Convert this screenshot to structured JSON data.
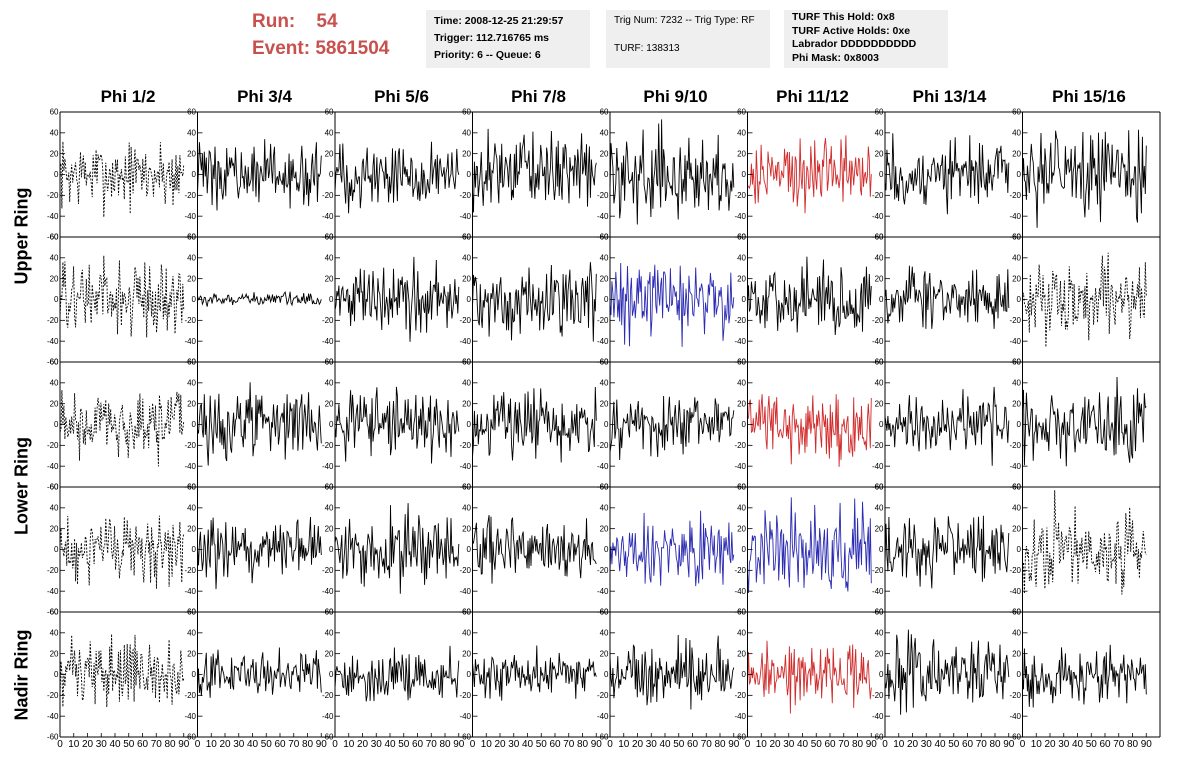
{
  "header": {
    "run_label": "Run:",
    "run_value": "54",
    "event_label": "Event:",
    "event_value": "5861504",
    "time_line": "Time: 2008-12-25 21:29:57",
    "trigger_line": "Trigger: 112.716765 ms",
    "priority_line": "Priority: 6 -- Queue: 6",
    "trig_line": "Trig Num: 7232 -- Trig Type: RF",
    "turf_line": "TURF: 138313",
    "turf_hold_line": "TURF This Hold: 0x8",
    "turf_active_line": "TURF Active Holds: 0xe",
    "labrador_line": "Labrador DDDDDDDDDD",
    "phi_mask_line": "Phi Mask: 0x8003"
  },
  "phi_labels": [
    "Phi 1/2",
    "Phi 3/4",
    "Phi 5/6",
    "Phi 7/8",
    "Phi 9/10",
    "Phi 11/12",
    "Phi 13/14",
    "Phi 15/16"
  ],
  "ring_labels": [
    "Upper Ring",
    "Lower Ring",
    "Nadir Ring"
  ],
  "colors": {
    "black": "#000000",
    "red": "#d12b2b",
    "blue": "#2b2bb3",
    "accent": "#c8504d",
    "box": "#efefef"
  },
  "chart_data": {
    "type": "line",
    "grid": {
      "rows": 5,
      "cols": 8
    },
    "xlim": [
      0,
      100
    ],
    "ylim": [
      -60,
      60
    ],
    "x_ticks": [
      0,
      10,
      20,
      30,
      40,
      50,
      60,
      70,
      80,
      90
    ],
    "y_ticks": [
      -60,
      -40,
      -20,
      0,
      20,
      40,
      60
    ],
    "trace_samples": 128,
    "panels": [
      [
        "dashed",
        "solid",
        "solid",
        "solid",
        "solid",
        "red",
        "solid",
        "solid"
      ],
      [
        "dashed",
        "flat",
        "solid",
        "solid",
        "blue",
        "solid",
        "solid",
        "dashed"
      ],
      [
        "dashed",
        "solid",
        "solid",
        "solid",
        "solid",
        "red",
        "solid",
        "solid"
      ],
      [
        "dashed",
        "solid",
        "solid",
        "solid",
        "blue",
        "blue",
        "solid",
        "dashed"
      ],
      [
        "dashed",
        "solid",
        "solid",
        "solid",
        "solid",
        "red",
        "solid",
        "solid"
      ]
    ],
    "amplitudes": [
      [
        16,
        14,
        15,
        17,
        19,
        17,
        16,
        20
      ],
      [
        18,
        3,
        16,
        17,
        17,
        16,
        16,
        18
      ],
      [
        16,
        16,
        15,
        16,
        15,
        16,
        14,
        18
      ],
      [
        16,
        15,
        16,
        14,
        16,
        20,
        15,
        20
      ],
      [
        16,
        11,
        12,
        11,
        14,
        15,
        16,
        13
      ]
    ]
  }
}
